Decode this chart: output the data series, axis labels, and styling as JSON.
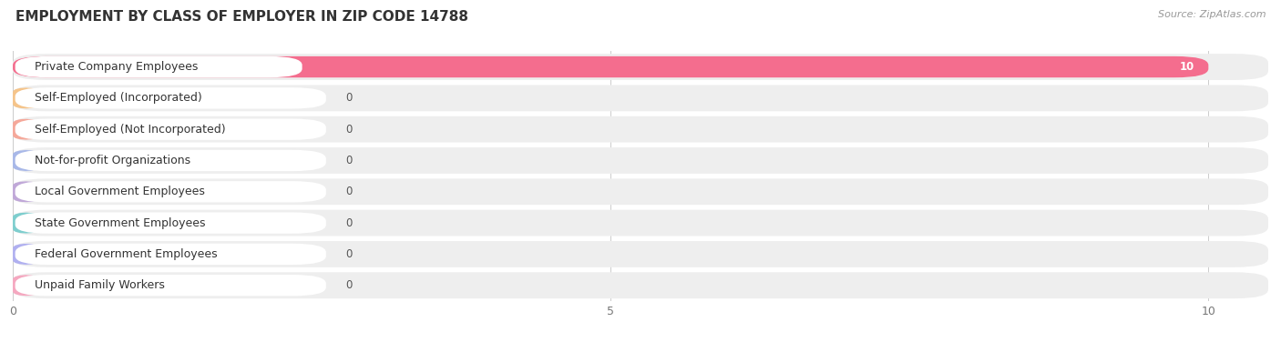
{
  "title": "EMPLOYMENT BY CLASS OF EMPLOYER IN ZIP CODE 14788",
  "source": "Source: ZipAtlas.com",
  "categories": [
    "Private Company Employees",
    "Self-Employed (Incorporated)",
    "Self-Employed (Not Incorporated)",
    "Not-for-profit Organizations",
    "Local Government Employees",
    "State Government Employees",
    "Federal Government Employees",
    "Unpaid Family Workers"
  ],
  "values": [
    10,
    0,
    0,
    0,
    0,
    0,
    0,
    0
  ],
  "bar_colors": [
    "#f46d8e",
    "#f5c48a",
    "#f5a89a",
    "#a8b8e8",
    "#c0a8d8",
    "#7ecece",
    "#b0b0f0",
    "#f5a8c0"
  ],
  "xlim": [
    0,
    10.5
  ],
  "xticks": [
    0,
    5,
    10
  ],
  "title_fontsize": 11,
  "source_fontsize": 8,
  "bar_label_fontsize": 8.5,
  "tick_fontsize": 9,
  "label_fontsize": 9
}
